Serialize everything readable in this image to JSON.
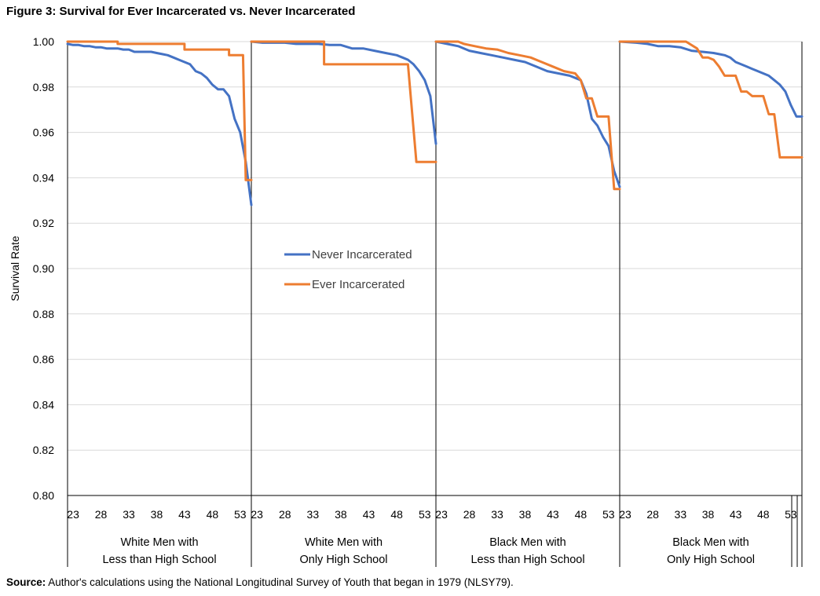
{
  "title": "Figure 3: Survival for Ever Incarcerated vs. Never Incarcerated",
  "source_label": "Source:",
  "source_text": "Author's calculations using the National Longitudinal Survey of Youth that began in 1979  (NLSY79).",
  "chart_data": {
    "type": "line",
    "ylabel": "Survival Rate",
    "ylim": [
      0.8,
      1.0
    ],
    "yticks": [
      "0.80",
      "0.82",
      "0.84",
      "0.86",
      "0.88",
      "0.90",
      "0.92",
      "0.94",
      "0.96",
      "0.98",
      "1.00"
    ],
    "x_range": [
      22,
      55
    ],
    "xticks": [
      23,
      28,
      33,
      38,
      43,
      48,
      53
    ],
    "gridlines": "horizontal",
    "legend": {
      "placement": "center-left",
      "entries": [
        "Never Incarcerated",
        "Ever Incarcerated"
      ]
    },
    "colors": {
      "Never Incarcerated": "#4472C4",
      "Ever Incarcerated": "#ED7D31"
    },
    "panels": [
      {
        "label_line1": "White Men with",
        "label_line2": "Less than High School",
        "series": [
          {
            "name": "Never Incarcerated",
            "x": [
              22,
              23,
              24,
              25,
              26,
              27,
              28,
              29,
              30,
              31,
              32,
              33,
              34,
              35,
              36,
              37,
              38,
              39,
              40,
              41,
              42,
              43,
              44,
              45,
              46,
              47,
              48,
              49,
              50,
              51,
              52,
              53,
              54,
              55
            ],
            "y": [
              0.999,
              0.9985,
              0.9985,
              0.998,
              0.998,
              0.9975,
              0.9975,
              0.997,
              0.997,
              0.997,
              0.9965,
              0.9965,
              0.9955,
              0.9955,
              0.9955,
              0.9955,
              0.995,
              0.9945,
              0.994,
              0.993,
              0.992,
              0.991,
              0.99,
              0.987,
              0.986,
              0.984,
              0.981,
              0.979,
              0.979,
              0.976,
              0.966,
              0.96,
              0.947,
              0.928
            ]
          },
          {
            "name": "Ever Incarcerated",
            "x": [
              22,
              31,
              31,
              43,
              43,
              51,
              51,
              53.5,
              54,
              55
            ],
            "y": [
              1.0,
              1.0,
              0.999,
              0.999,
              0.9965,
              0.9965,
              0.994,
              0.994,
              0.939,
              0.939
            ]
          }
        ]
      },
      {
        "label_line1": "White Men with",
        "label_line2": "Only High School",
        "series": [
          {
            "name": "Never Incarcerated",
            "x": [
              22,
              24,
              26,
              28,
              30,
              32,
              34,
              36,
              38,
              40,
              42,
              44,
              46,
              48,
              49,
              50,
              51,
              52,
              53,
              54,
              55
            ],
            "y": [
              1.0,
              0.9995,
              0.9995,
              0.9995,
              0.999,
              0.999,
              0.999,
              0.9985,
              0.9985,
              0.997,
              0.997,
              0.996,
              0.995,
              0.994,
              0.993,
              0.992,
              0.99,
              0.987,
              0.983,
              0.976,
              0.955
            ]
          },
          {
            "name": "Ever Incarcerated",
            "x": [
              22,
              35,
              35,
              50,
              51.5,
              55
            ],
            "y": [
              1.0,
              1.0,
              0.99,
              0.99,
              0.947,
              0.947
            ]
          }
        ]
      },
      {
        "label_line1": "Black Men with",
        "label_line2": "Less than High School",
        "series": [
          {
            "name": "Never Incarcerated",
            "x": [
              22,
              24,
              26,
              28,
              30,
              32,
              34,
              36,
              38,
              40,
              42,
              44,
              46,
              47,
              48,
              49,
              50,
              51,
              52,
              53,
              54,
              55
            ],
            "y": [
              1.0,
              0.999,
              0.998,
              0.996,
              0.995,
              0.994,
              0.993,
              0.992,
              0.991,
              0.989,
              0.987,
              0.986,
              0.985,
              0.984,
              0.983,
              0.977,
              0.966,
              0.963,
              0.958,
              0.954,
              0.943,
              0.936
            ]
          },
          {
            "name": "Ever Incarcerated",
            "x": [
              22,
              26,
              27,
              29,
              31,
              33,
              35,
              37,
              39,
              41,
              43,
              45,
              47,
              48,
              49,
              50,
              51,
              52,
              53,
              54,
              55
            ],
            "y": [
              1.0,
              1.0,
              0.999,
              0.998,
              0.997,
              0.9965,
              0.995,
              0.994,
              0.993,
              0.991,
              0.989,
              0.987,
              0.986,
              0.983,
              0.975,
              0.975,
              0.967,
              0.967,
              0.967,
              0.935,
              0.935
            ]
          }
        ]
      },
      {
        "label_line1": "Black Men with",
        "label_line2": "Only High School",
        "series": [
          {
            "name": "Never Incarcerated",
            "x": [
              22,
              25,
              27,
              29,
              31,
              33,
              35,
              37,
              39,
              40,
              41,
              42,
              43,
              44,
              45,
              46,
              47,
              48,
              49,
              50,
              51,
              52,
              53,
              54,
              55
            ],
            "y": [
              1.0,
              0.9995,
              0.999,
              0.998,
              0.998,
              0.9975,
              0.996,
              0.9955,
              0.995,
              0.9945,
              0.994,
              0.993,
              0.991,
              0.99,
              0.989,
              0.988,
              0.987,
              0.986,
              0.985,
              0.983,
              0.981,
              0.978,
              0.972,
              0.967,
              0.967
            ]
          },
          {
            "name": "Ever Incarcerated",
            "x": [
              22,
              34,
              36,
              37,
              38,
              39,
              40,
              41,
              42,
              43,
              44,
              45,
              46,
              47,
              48,
              49,
              50,
              51,
              52,
              53,
              54,
              55
            ],
            "y": [
              1.0,
              1.0,
              0.997,
              0.993,
              0.993,
              0.992,
              0.989,
              0.985,
              0.985,
              0.985,
              0.978,
              0.978,
              0.976,
              0.976,
              0.976,
              0.968,
              0.968,
              0.949,
              0.949,
              0.949,
              0.949,
              0.949
            ]
          }
        ]
      }
    ]
  }
}
